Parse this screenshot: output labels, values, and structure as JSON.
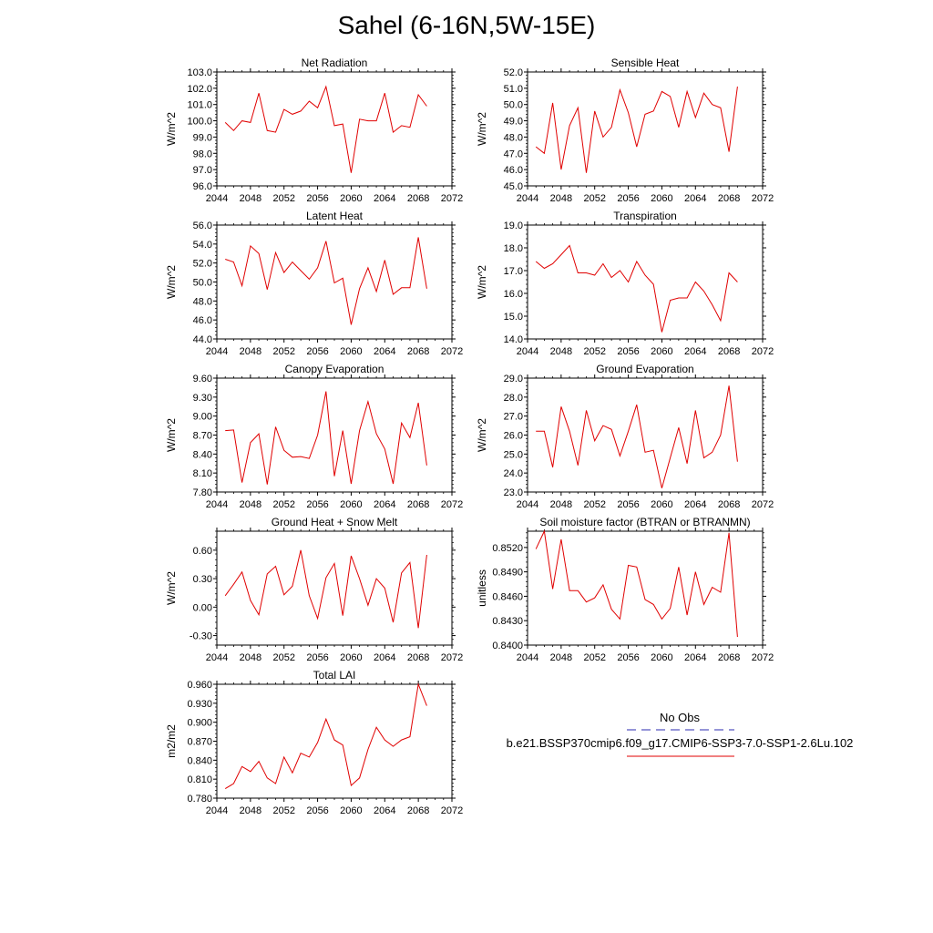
{
  "title": "Sahel (6-16N,5W-15E)",
  "colors": {
    "model": "#e00000",
    "obs": "#2b2bb0",
    "axis": "#000000"
  },
  "legend": {
    "obs_label": "No Obs",
    "model_label": "b.e21.BSSP370cmip6.f09_g17.CMIP6-SSP3-7.0-SSP1-2.6Lu.102"
  },
  "chart_data": [
    {
      "type": "line",
      "title": "Net Radiation",
      "ylabel": "W/m^2",
      "xlim": [
        2044,
        2072
      ],
      "ylim": [
        96.0,
        103.0
      ],
      "xticks": [
        "2044",
        "2048",
        "2052",
        "2056",
        "2060",
        "2064",
        "2068",
        "2072"
      ],
      "yticks": [
        "96.0",
        "97.0",
        "98.0",
        "99.0",
        "100.0",
        "101.0",
        "102.0",
        "103.0"
      ],
      "x": [
        2045,
        2046,
        2047,
        2048,
        2049,
        2050,
        2051,
        2052,
        2053,
        2054,
        2055,
        2056,
        2057,
        2058,
        2059,
        2060,
        2061,
        2062,
        2063,
        2064,
        2065,
        2066,
        2067,
        2068,
        2069
      ],
      "series": [
        {
          "values": [
            99.9,
            99.4,
            100.0,
            99.9,
            101.7,
            99.4,
            99.3,
            100.7,
            100.4,
            100.6,
            101.2,
            100.8,
            102.1,
            99.7,
            99.8,
            96.8,
            100.1,
            100.0,
            100.0,
            101.7,
            99.3,
            99.7,
            99.6,
            101.6,
            100.9
          ]
        }
      ]
    },
    {
      "type": "line",
      "title": "Sensible Heat",
      "ylabel": "W/m^2",
      "xlim": [
        2044,
        2072
      ],
      "ylim": [
        45.0,
        52.0
      ],
      "xticks": [
        "2044",
        "2048",
        "2052",
        "2056",
        "2060",
        "2064",
        "2068",
        "2072"
      ],
      "yticks": [
        "45.0",
        "46.0",
        "47.0",
        "48.0",
        "49.0",
        "50.0",
        "51.0",
        "52.0"
      ],
      "x": [
        2045,
        2046,
        2047,
        2048,
        2049,
        2050,
        2051,
        2052,
        2053,
        2054,
        2055,
        2056,
        2057,
        2058,
        2059,
        2060,
        2061,
        2062,
        2063,
        2064,
        2065,
        2066,
        2067,
        2068,
        2069
      ],
      "series": [
        {
          "values": [
            47.4,
            47.0,
            50.1,
            46.0,
            48.7,
            49.8,
            45.8,
            49.6,
            48.0,
            48.6,
            50.9,
            49.5,
            47.4,
            49.4,
            49.6,
            50.8,
            50.5,
            48.6,
            50.8,
            49.2,
            50.7,
            50.0,
            49.8,
            47.1,
            51.1
          ]
        }
      ]
    },
    {
      "type": "line",
      "title": "Latent Heat",
      "ylabel": "W/m^2",
      "xlim": [
        2044,
        2072
      ],
      "ylim": [
        44.0,
        56.0
      ],
      "xticks": [
        "2044",
        "2048",
        "2052",
        "2056",
        "2060",
        "2064",
        "2068",
        "2072"
      ],
      "yticks": [
        "44.0",
        "46.0",
        "48.0",
        "50.0",
        "52.0",
        "54.0",
        "56.0"
      ],
      "x": [
        2045,
        2046,
        2047,
        2048,
        2049,
        2050,
        2051,
        2052,
        2053,
        2054,
        2055,
        2056,
        2057,
        2058,
        2059,
        2060,
        2061,
        2062,
        2063,
        2064,
        2065,
        2066,
        2067,
        2068,
        2069
      ],
      "series": [
        {
          "values": [
            52.4,
            52.1,
            49.6,
            53.8,
            53.0,
            49.2,
            53.1,
            51.0,
            52.1,
            51.2,
            50.3,
            51.5,
            54.3,
            49.9,
            50.4,
            45.5,
            49.3,
            51.5,
            49.0,
            52.3,
            48.7,
            49.4,
            49.4,
            54.7,
            49.3
          ]
        }
      ]
    },
    {
      "type": "line",
      "title": "Transpiration",
      "ylabel": "W/m^2",
      "xlim": [
        2044,
        2072
      ],
      "ylim": [
        14.0,
        19.0
      ],
      "xticks": [
        "2044",
        "2048",
        "2052",
        "2056",
        "2060",
        "2064",
        "2068",
        "2072"
      ],
      "yticks": [
        "14.0",
        "15.0",
        "16.0",
        "17.0",
        "18.0",
        "19.0"
      ],
      "x": [
        2045,
        2046,
        2047,
        2048,
        2049,
        2050,
        2051,
        2052,
        2053,
        2054,
        2055,
        2056,
        2057,
        2058,
        2059,
        2060,
        2061,
        2062,
        2063,
        2064,
        2065,
        2066,
        2067,
        2068,
        2069
      ],
      "series": [
        {
          "values": [
            17.4,
            17.1,
            17.3,
            17.7,
            18.1,
            16.9,
            16.9,
            16.8,
            17.3,
            16.7,
            17.0,
            16.5,
            17.4,
            16.8,
            16.4,
            14.3,
            15.7,
            15.8,
            15.8,
            16.5,
            16.1,
            15.5,
            14.8,
            16.9,
            16.5
          ]
        }
      ]
    },
    {
      "type": "line",
      "title": "Canopy Evaporation",
      "ylabel": "W/m^2",
      "xlim": [
        2044,
        2072
      ],
      "ylim": [
        7.8,
        9.6
      ],
      "xticks": [
        "2044",
        "2048",
        "2052",
        "2056",
        "2060",
        "2064",
        "2068",
        "2072"
      ],
      "yticks": [
        "7.80",
        "8.10",
        "8.40",
        "8.70",
        "9.00",
        "9.30",
        "9.60"
      ],
      "x": [
        2045,
        2046,
        2047,
        2048,
        2049,
        2050,
        2051,
        2052,
        2053,
        2054,
        2055,
        2056,
        2057,
        2058,
        2059,
        2060,
        2061,
        2062,
        2063,
        2064,
        2065,
        2066,
        2067,
        2068,
        2069
      ],
      "series": [
        {
          "values": [
            8.77,
            8.78,
            7.95,
            8.58,
            8.72,
            7.92,
            8.83,
            8.46,
            8.35,
            8.36,
            8.33,
            8.7,
            9.39,
            8.05,
            8.77,
            7.93,
            8.77,
            9.23,
            8.72,
            8.48,
            7.93,
            8.89,
            8.66,
            9.21,
            8.22
          ]
        }
      ]
    },
    {
      "type": "line",
      "title": "Ground Evaporation",
      "ylabel": "W/m^2",
      "xlim": [
        2044,
        2072
      ],
      "ylim": [
        23.0,
        29.0
      ],
      "xticks": [
        "2044",
        "2048",
        "2052",
        "2056",
        "2060",
        "2064",
        "2068",
        "2072"
      ],
      "yticks": [
        "23.0",
        "24.0",
        "25.0",
        "26.0",
        "27.0",
        "28.0",
        "29.0"
      ],
      "x": [
        2045,
        2046,
        2047,
        2048,
        2049,
        2050,
        2051,
        2052,
        2053,
        2054,
        2055,
        2056,
        2057,
        2058,
        2059,
        2060,
        2061,
        2062,
        2063,
        2064,
        2065,
        2066,
        2067,
        2068,
        2069
      ],
      "series": [
        {
          "values": [
            26.2,
            26.2,
            24.3,
            27.5,
            26.2,
            24.4,
            27.3,
            25.7,
            26.5,
            26.3,
            24.9,
            26.2,
            27.6,
            25.1,
            25.2,
            23.2,
            24.8,
            26.4,
            24.5,
            27.3,
            24.8,
            25.1,
            26.0,
            28.6,
            24.6
          ]
        }
      ]
    },
    {
      "type": "line",
      "title": "Ground Heat + Snow Melt",
      "ylabel": "W/m^2",
      "xlim": [
        2044,
        2072
      ],
      "ylim": [
        -0.4,
        0.8
      ],
      "xticks": [
        "2044",
        "2048",
        "2052",
        "2056",
        "2060",
        "2064",
        "2068",
        "2072"
      ],
      "yticks": [
        "-0.30",
        "0.00",
        "0.30",
        "0.60"
      ],
      "ytick_values": [
        -0.3,
        0.0,
        0.3,
        0.6
      ],
      "x": [
        2045,
        2046,
        2047,
        2048,
        2049,
        2050,
        2051,
        2052,
        2053,
        2054,
        2055,
        2056,
        2057,
        2058,
        2059,
        2060,
        2061,
        2062,
        2063,
        2064,
        2065,
        2066,
        2067,
        2068,
        2069
      ],
      "series": [
        {
          "values": [
            0.12,
            0.24,
            0.37,
            0.07,
            -0.08,
            0.35,
            0.43,
            0.13,
            0.22,
            0.6,
            0.12,
            -0.12,
            0.31,
            0.46,
            -0.09,
            0.54,
            0.3,
            0.02,
            0.3,
            0.2,
            -0.16,
            0.36,
            0.47,
            -0.22,
            0.55
          ]
        }
      ]
    },
    {
      "type": "line",
      "title": "Soil moisture factor (BTRAN or BTRANMN)",
      "ylabel": "unitless",
      "xlim": [
        2044,
        2072
      ],
      "ylim": [
        0.84,
        0.854
      ],
      "xticks": [
        "2044",
        "2048",
        "2052",
        "2056",
        "2060",
        "2064",
        "2068",
        "2072"
      ],
      "yticks": [
        "0.8400",
        "0.8430",
        "0.8460",
        "0.8490",
        "0.8520"
      ],
      "x": [
        2045,
        2046,
        2047,
        2048,
        2049,
        2050,
        2051,
        2052,
        2053,
        2054,
        2055,
        2056,
        2057,
        2058,
        2059,
        2060,
        2061,
        2062,
        2063,
        2064,
        2065,
        2066,
        2067,
        2068,
        2069
      ],
      "series": [
        {
          "values": [
            0.8518,
            0.854,
            0.8469,
            0.853,
            0.8467,
            0.8467,
            0.8453,
            0.8458,
            0.8474,
            0.8444,
            0.8432,
            0.8498,
            0.8496,
            0.8456,
            0.845,
            0.8432,
            0.8445,
            0.8496,
            0.8437,
            0.849,
            0.845,
            0.8471,
            0.8465,
            0.8538,
            0.841
          ]
        }
      ]
    },
    {
      "type": "line",
      "title": "Total LAI",
      "ylabel": "m2/m2",
      "xlim": [
        2044,
        2072
      ],
      "ylim": [
        0.78,
        0.96
      ],
      "xticks": [
        "2044",
        "2048",
        "2052",
        "2056",
        "2060",
        "2064",
        "2068",
        "2072"
      ],
      "yticks": [
        "0.780",
        "0.810",
        "0.840",
        "0.870",
        "0.900",
        "0.930",
        "0.960"
      ],
      "x": [
        2045,
        2046,
        2047,
        2048,
        2049,
        2050,
        2051,
        2052,
        2053,
        2054,
        2055,
        2056,
        2057,
        2058,
        2059,
        2060,
        2061,
        2062,
        2063,
        2064,
        2065,
        2066,
        2067,
        2068,
        2069
      ],
      "series": [
        {
          "values": [
            0.795,
            0.803,
            0.83,
            0.822,
            0.838,
            0.812,
            0.803,
            0.845,
            0.82,
            0.851,
            0.845,
            0.868,
            0.905,
            0.872,
            0.864,
            0.8,
            0.812,
            0.857,
            0.892,
            0.872,
            0.862,
            0.872,
            0.877,
            0.96,
            0.926
          ]
        }
      ]
    }
  ]
}
